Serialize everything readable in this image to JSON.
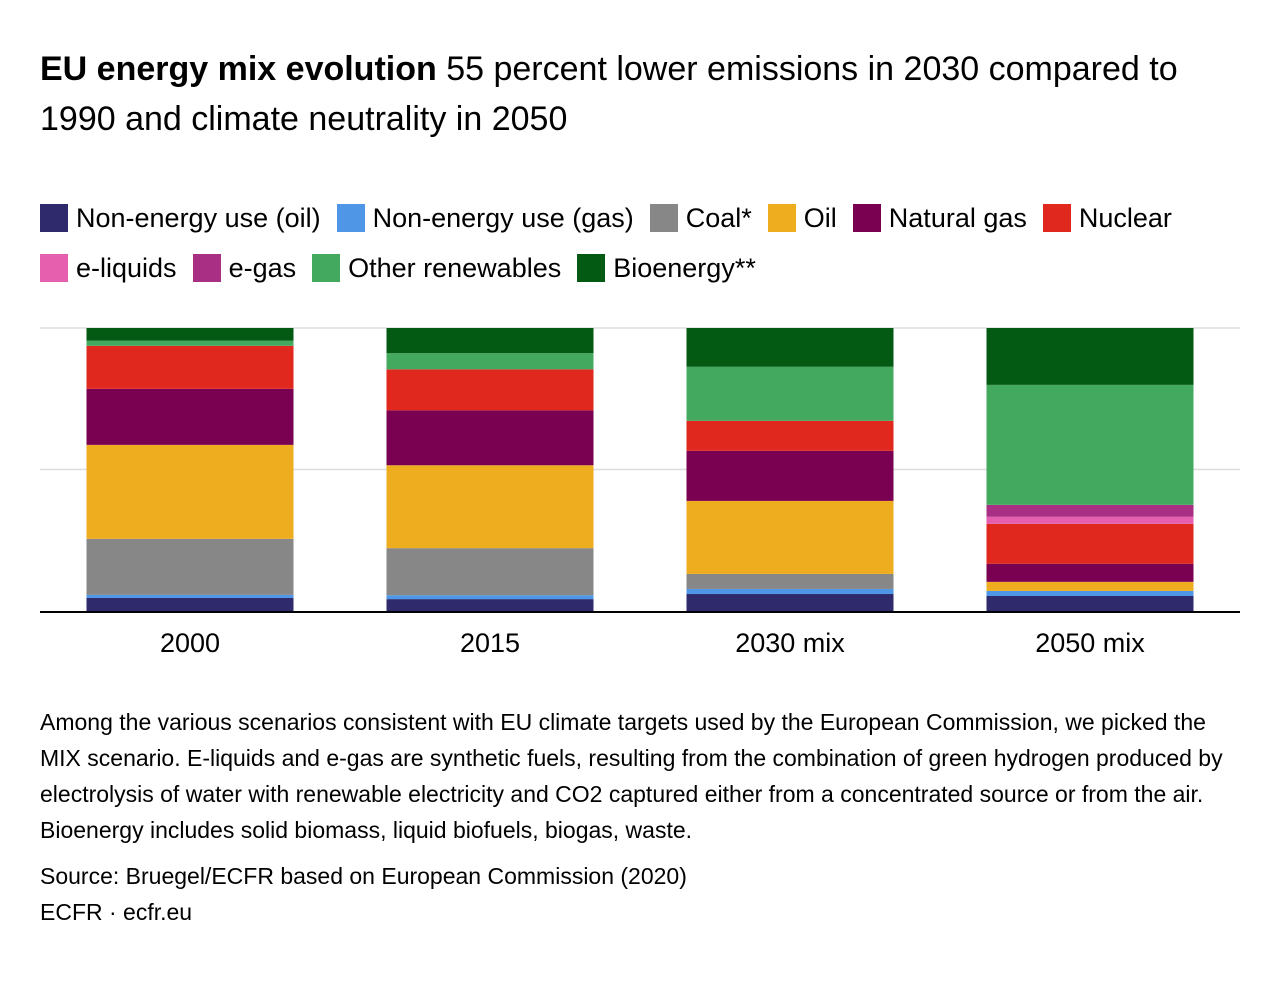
{
  "header": {
    "title_bold": "EU energy mix evolution",
    "title_rest": "55 percent lower emissions in 2030 compared to 1990 and climate neutrality in 2050"
  },
  "chart_data": {
    "type": "bar",
    "stacked": true,
    "normalized": true,
    "title": "EU energy mix evolution",
    "categories": [
      "2000",
      "2015",
      "2030 mix",
      "2050 mix"
    ],
    "ylim": [
      0,
      100
    ],
    "ylabel": "",
    "xlabel": "",
    "grid": true,
    "gridlines": [
      50,
      100
    ],
    "series": [
      {
        "name": "Non-energy use (oil)",
        "color": "#2e2a6b",
        "values": [
          4.6,
          4.2,
          6.0,
          5.3
        ]
      },
      {
        "name": "Non-energy use (gas)",
        "color": "#4f97e6",
        "values": [
          1.1,
          1.4,
          1.8,
          1.8
        ]
      },
      {
        "name": "Coal*",
        "color": "#878787",
        "values": [
          19.8,
          16.6,
          5.3,
          0.0
        ]
      },
      {
        "name": "Oil",
        "color": "#edad1f",
        "values": [
          33.2,
          29.3,
          25.8,
          3.2
        ]
      },
      {
        "name": "Natural gas",
        "color": "#7a0051",
        "values": [
          19.8,
          19.4,
          17.7,
          6.4
        ]
      },
      {
        "name": "Nuclear",
        "color": "#e0281e",
        "values": [
          15.2,
          14.5,
          10.6,
          14.1
        ]
      },
      {
        "name": "e-liquids",
        "color": "#e65fae",
        "values": [
          0,
          0,
          0,
          2.5
        ]
      },
      {
        "name": "e-gas",
        "color": "#a82f84",
        "values": [
          0,
          0,
          0,
          4.2
        ]
      },
      {
        "name": "Other renewables",
        "color": "#43a95f",
        "values": [
          1.8,
          5.7,
          19.1,
          42.4
        ]
      },
      {
        "name": "Bioenergy**",
        "color": "#035a13",
        "values": [
          4.5,
          8.9,
          13.7,
          20.1
        ]
      }
    ]
  },
  "footer": {
    "notes": "Among the various scenarios consistent with EU climate targets used by the European Commission, we picked the MIX scenario. E-liquids and e-gas are synthetic fuels, resulting from the combination of green hydrogen produced by electrolysis of water with renewable electricity and CO2 captured either from a concentrated source or from the air. Bioenergy includes solid biomass, liquid biofuels, biogas, waste.",
    "source": "Source: Bruegel/ECFR based on European Commission (2020)",
    "credit": "ECFR · ecfr.eu"
  }
}
